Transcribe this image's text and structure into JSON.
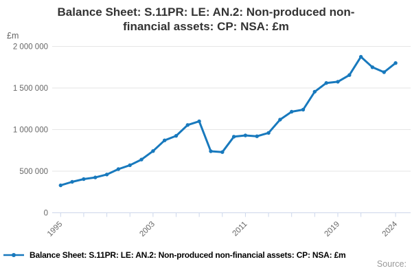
{
  "title": {
    "line1": "Balance Sheet: S.11PR: LE: AN.2: Non-produced non-",
    "line2": "financial assets: CP: NSA: £m"
  },
  "y_axis": {
    "unit_label": "£m",
    "ticks": [
      {
        "value": 0,
        "label": "0"
      },
      {
        "value": 500000,
        "label": "500 000"
      },
      {
        "value": 1000000,
        "label": "1 000 000"
      },
      {
        "value": 1500000,
        "label": "1 500 000"
      },
      {
        "value": 2000000,
        "label": "2 000 000"
      }
    ]
  },
  "x_axis": {
    "ticks": [
      {
        "year": 1995,
        "label": "1995"
      },
      {
        "year": 1997
      },
      {
        "year": 1999
      },
      {
        "year": 2001
      },
      {
        "year": 2003,
        "label": "2003"
      },
      {
        "year": 2005
      },
      {
        "year": 2007
      },
      {
        "year": 2009
      },
      {
        "year": 2011,
        "label": "2011"
      },
      {
        "year": 2013
      },
      {
        "year": 2015
      },
      {
        "year": 2017
      },
      {
        "year": 2019,
        "label": "2019"
      },
      {
        "year": 2021
      },
      {
        "year": 2024,
        "label": "2024"
      }
    ]
  },
  "legend": {
    "label": "Balance Sheet: S.11PR: LE: AN.2: Non-produced non-financial assets: CP: NSA: £m"
  },
  "source": {
    "label": "Source:"
  },
  "colors": {
    "line": "#1879bd",
    "grid": "#e6e6e6",
    "axis": "#ccd6eb",
    "tick_text": "#666666",
    "title_text": "#333333"
  },
  "chart_data": {
    "type": "line",
    "title": "Balance Sheet: S.11PR: LE: AN.2: Non-produced non-financial assets: CP: NSA: £m",
    "ylabel": "£m",
    "ylim": [
      0,
      2000000
    ],
    "grid": true,
    "marker": "circle",
    "legend_position": "bottom-left",
    "x": [
      1995,
      1996,
      1997,
      1998,
      1999,
      2000,
      2001,
      2002,
      2003,
      2004,
      2005,
      2006,
      2007,
      2008,
      2009,
      2010,
      2011,
      2012,
      2013,
      2014,
      2015,
      2016,
      2017,
      2018,
      2019,
      2020,
      2021,
      2022,
      2023,
      2024
    ],
    "values": [
      330000,
      372000,
      405000,
      425000,
      460000,
      525000,
      572000,
      640000,
      742000,
      870000,
      925000,
      1055000,
      1100000,
      740000,
      730000,
      915000,
      930000,
      920000,
      960000,
      1120000,
      1215000,
      1240000,
      1455000,
      1560000,
      1575000,
      1655000,
      1875000,
      1750000,
      1690000,
      1800000
    ]
  }
}
